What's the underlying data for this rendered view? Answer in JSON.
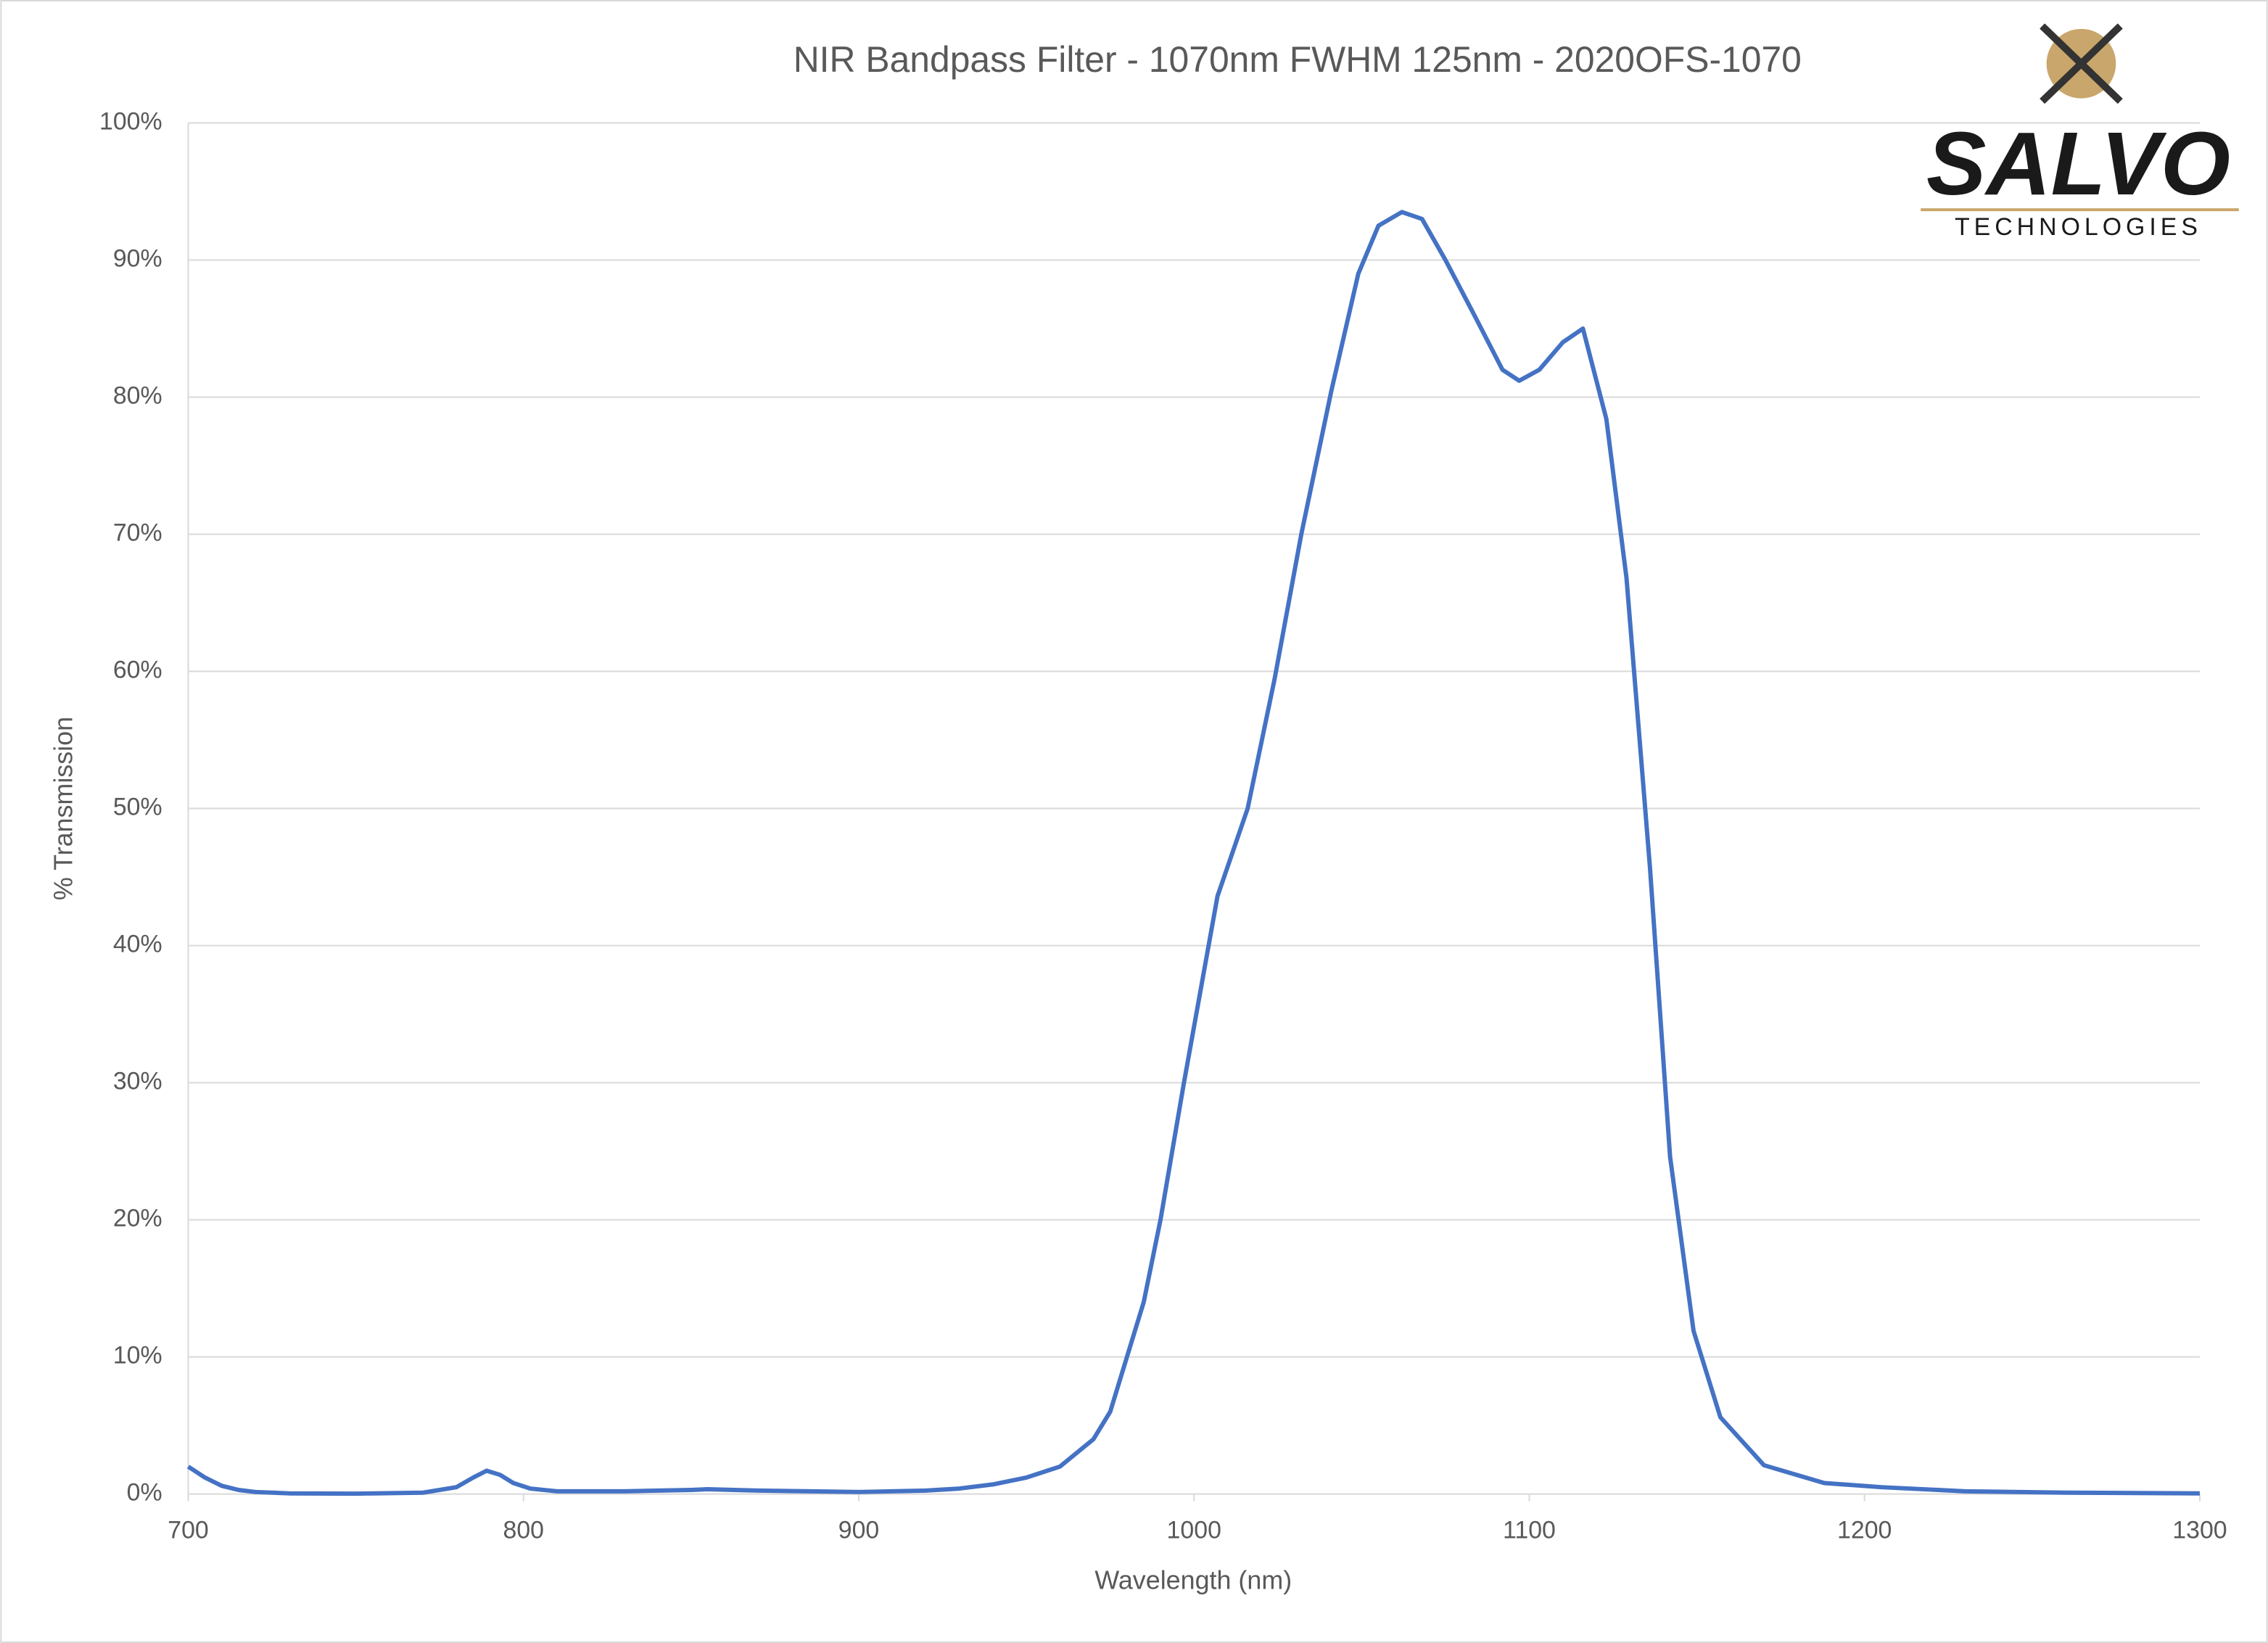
{
  "chart_data": {
    "type": "line",
    "title": "NIR Bandpass Filter - 1070nm FWHM 125nm - 2020OFS-1070",
    "x_label": "Wavelength (nm)",
    "y_label": "% Transmission",
    "x": [
      700,
      705,
      710,
      715,
      720,
      730,
      750,
      770,
      780,
      785,
      789,
      793,
      797,
      802,
      810,
      830,
      850,
      855,
      870,
      900,
      920,
      930,
      940,
      950,
      955,
      960,
      965,
      970,
      975,
      980,
      985,
      990,
      997,
      1007,
      1016,
      1024,
      1032,
      1041,
      1049,
      1055,
      1062,
      1068,
      1075,
      1084,
      1092,
      1097,
      1103,
      1110,
      1116,
      1123,
      1129,
      1136,
      1142,
      1149,
      1157,
      1170,
      1188,
      1205,
      1230,
      1260,
      1300
    ],
    "values": [
      2.0,
      1.2,
      0.6,
      0.3,
      0.15,
      0.05,
      0.03,
      0.1,
      0.5,
      1.2,
      1.7,
      1.4,
      0.8,
      0.4,
      0.2,
      0.2,
      0.3,
      0.35,
      0.25,
      0.15,
      0.25,
      0.4,
      0.7,
      1.2,
      1.6,
      2.0,
      3.0,
      4.0,
      6.0,
      10,
      14,
      20,
      30,
      43.6,
      50,
      59.4,
      70,
      80.5,
      89,
      92.5,
      93.5,
      93,
      90,
      85.8,
      82,
      81.2,
      82,
      84,
      85,
      78.4,
      66.8,
      45.7,
      24.6,
      11.9,
      5.6,
      2.1,
      0.8,
      0.5,
      0.2,
      0.1,
      0.05
    ],
    "color": "#4472c4",
    "xlim": [
      700,
      1300
    ],
    "xticks": [
      700,
      800,
      900,
      1000,
      1100,
      1200,
      1300
    ],
    "ylim": [
      0,
      100
    ],
    "yticks": [
      {
        "value": 0,
        "label": "0%"
      },
      {
        "value": 10,
        "label": "10%"
      },
      {
        "value": 20,
        "label": "20%"
      },
      {
        "value": 30,
        "label": "30%"
      },
      {
        "value": 40,
        "label": "40%"
      },
      {
        "value": 50,
        "label": "50%"
      },
      {
        "value": 60,
        "label": "60%"
      },
      {
        "value": 70,
        "label": "70%"
      },
      {
        "value": 80,
        "label": "80%"
      },
      {
        "value": 90,
        "label": "90%"
      },
      {
        "value": 100,
        "label": "100%"
      }
    ],
    "grid": true
  },
  "logo": {
    "name": "SALVO",
    "tagline": "TECHNOLOGIES"
  }
}
